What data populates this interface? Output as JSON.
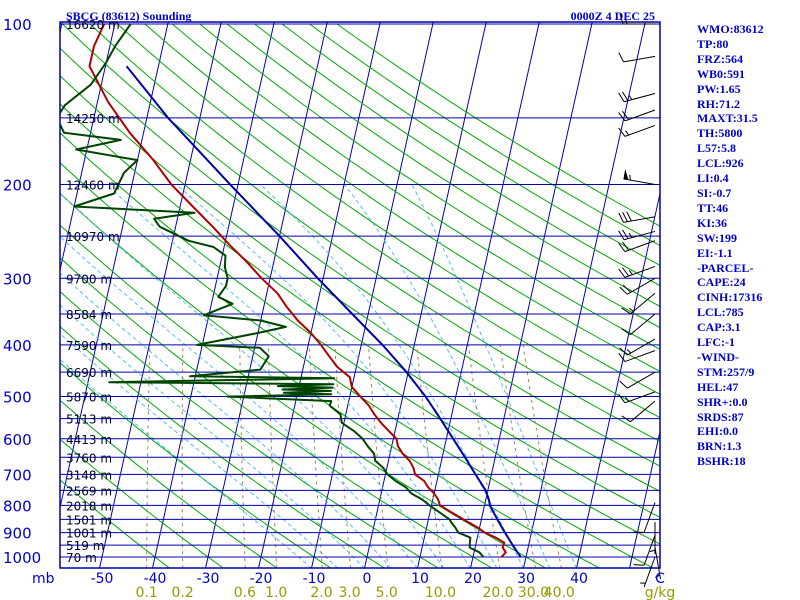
{
  "chart_data": {
    "type": "line",
    "title_left": "SBCG (83612) Sounding",
    "title_right": "0000Z  4 DEC 25",
    "pressure_axis": {
      "label": "mb",
      "ticks": [
        "100",
        "200",
        "300",
        "400",
        "500",
        "600",
        "700",
        "800",
        "900",
        "1000"
      ]
    },
    "height_labels": [
      {
        "text": "16620 m",
        "p": 100
      },
      {
        "text": "14250 m",
        "p": 150
      },
      {
        "text": "12460 m",
        "p": 200
      },
      {
        "text": "10970 m",
        "p": 250
      },
      {
        "text": "9700 m",
        "p": 300
      },
      {
        "text": "8584 m",
        "p": 350
      },
      {
        "text": "7590 m",
        "p": 400
      },
      {
        "text": "6690 m",
        "p": 450
      },
      {
        "text": "5870 m",
        "p": 500
      },
      {
        "text": "5113 m",
        "p": 550
      },
      {
        "text": "4413 m",
        "p": 600
      },
      {
        "text": "3760 m",
        "p": 650
      },
      {
        "text": "3148 m",
        "p": 700
      },
      {
        "text": "2569 m",
        "p": 750
      },
      {
        "text": "2018 m",
        "p": 800
      },
      {
        "text": "1501 m",
        "p": 850
      },
      {
        "text": "1001 m",
        "p": 900
      },
      {
        "text": "519 m",
        "p": 950
      },
      {
        "text": "70 m",
        "p": 1000
      }
    ],
    "temperature_axis": {
      "unit": "C",
      "ticks": [
        "-50",
        "-40",
        "-30",
        "-20",
        "-10",
        "0",
        "10",
        "20",
        "30",
        "40"
      ]
    },
    "mixing_ratio_axis": {
      "unit": "g/kg",
      "ticks": [
        "0.1",
        "0.2",
        "0.6",
        "1.0",
        "2.0",
        "3.0",
        "5.0",
        "10.0",
        "20.0",
        "30.0",
        "40.0"
      ]
    },
    "series": [
      {
        "role": "temperature",
        "color": "#b00000",
        "points": [
          [
            1000,
            25.4
          ],
          [
            980,
            26
          ],
          [
            960,
            25.2
          ],
          [
            940,
            25.3
          ],
          [
            920,
            23.5
          ],
          [
            900,
            21.2
          ],
          [
            880,
            19.6
          ],
          [
            860,
            17.6
          ],
          [
            840,
            15.6
          ],
          [
            820,
            13.6
          ],
          [
            800,
            11.6
          ],
          [
            780,
            11.0
          ],
          [
            760,
            10.0
          ],
          [
            740,
            8.6
          ],
          [
            720,
            7.6
          ],
          [
            700,
            5.6
          ],
          [
            680,
            5.0
          ],
          [
            660,
            4.0
          ],
          [
            640,
            2.4
          ],
          [
            620,
            1.2
          ],
          [
            600,
            0.6
          ],
          [
            580,
            -1.2
          ],
          [
            560,
            -3.0
          ],
          [
            540,
            -4.6
          ],
          [
            520,
            -6.0
          ],
          [
            500,
            -8.0
          ],
          [
            480,
            -10.0
          ],
          [
            460,
            -10.8
          ],
          [
            440,
            -13.6
          ],
          [
            420,
            -15.6
          ],
          [
            400,
            -17.6
          ],
          [
            380,
            -20.0
          ],
          [
            360,
            -23.0
          ],
          [
            340,
            -25.6
          ],
          [
            320,
            -28.0
          ],
          [
            300,
            -31.6
          ],
          [
            280,
            -35.0
          ],
          [
            260,
            -39.0
          ],
          [
            240,
            -43.0
          ],
          [
            220,
            -47.6
          ],
          [
            200,
            -52.6
          ],
          [
            180,
            -57.0
          ],
          [
            160,
            -62.6
          ],
          [
            140,
            -68.0
          ],
          [
            120,
            -73.0
          ],
          [
            110,
            -73.0
          ],
          [
            100,
            -72.0
          ]
        ]
      },
      {
        "role": "dewpoint",
        "color": "#004400",
        "points": [
          [
            1000,
            22.0
          ],
          [
            980,
            21.0
          ],
          [
            960,
            19.0
          ],
          [
            940,
            18.8
          ],
          [
            920,
            18.7
          ],
          [
            900,
            16.2
          ],
          [
            880,
            15.4
          ],
          [
            860,
            14.4
          ],
          [
            850,
            14.0
          ],
          [
            800,
            9.6
          ],
          [
            780,
            8.0
          ],
          [
            760,
            5.7
          ],
          [
            740,
            4.4
          ],
          [
            720,
            2.2
          ],
          [
            700,
            0.4
          ],
          [
            680,
            -0.7
          ],
          [
            660,
            -2.5
          ],
          [
            640,
            -3.0
          ],
          [
            620,
            -4.5
          ],
          [
            600,
            -5.8
          ],
          [
            580,
            -7.8
          ],
          [
            560,
            -10.4
          ],
          [
            540,
            -11.0
          ],
          [
            520,
            -13.4
          ],
          [
            510,
            -13.3
          ],
          [
            500,
            -33.0
          ],
          [
            495,
            -13.6
          ],
          [
            492,
            -22.6
          ],
          [
            488,
            -13.8
          ],
          [
            485,
            -23.0
          ],
          [
            481,
            -13.6
          ],
          [
            478,
            -24.0
          ],
          [
            474,
            -13.6
          ],
          [
            470,
            -56.0
          ],
          [
            462,
            -13.7
          ],
          [
            458,
            -41.0
          ],
          [
            445,
            -28.0
          ],
          [
            420,
            -27.0
          ],
          [
            405,
            -29.0
          ],
          [
            400,
            -41.0
          ],
          [
            380,
            -30.0
          ],
          [
            370,
            -25.0
          ],
          [
            360,
            -30.0
          ],
          [
            352,
            -41.0
          ],
          [
            335,
            -36.0
          ],
          [
            325,
            -39.0
          ],
          [
            310,
            -38.0
          ],
          [
            300,
            -38.0
          ],
          [
            286,
            -39.0
          ],
          [
            272,
            -39.4
          ],
          [
            262,
            -42.0
          ],
          [
            255,
            -47.0
          ],
          [
            240,
            -53.0
          ],
          [
            232,
            -54.4
          ],
          [
            226,
            -47.0
          ],
          [
            220,
            -70.0
          ],
          [
            208,
            -63.0
          ],
          [
            190,
            -62.0
          ],
          [
            180,
            -60.0
          ],
          [
            172,
            -72.0
          ],
          [
            165,
            -64.0
          ],
          [
            160,
            -75.0
          ],
          [
            150,
            -77.0
          ],
          [
            142,
            -76.0
          ],
          [
            130,
            -72.0
          ],
          [
            118,
            -70.0
          ],
          [
            110,
            -69.0
          ],
          [
            100,
            -67.0
          ]
        ]
      },
      {
        "role": "parcel",
        "color": "#0000aa",
        "points": [
          [
            1000,
            29.0
          ],
          [
            950,
            27.0
          ],
          [
            900,
            25.0
          ],
          [
            850,
            23.0
          ],
          [
            800,
            21.0
          ],
          [
            785,
            20.7
          ],
          [
            750,
            19.6
          ],
          [
            700,
            17.0
          ],
          [
            650,
            14.3
          ],
          [
            600,
            11.3
          ],
          [
            550,
            8.0
          ],
          [
            500,
            4.3
          ],
          [
            450,
            -0.3
          ],
          [
            400,
            -6.0
          ],
          [
            350,
            -13.0
          ],
          [
            300,
            -21.0
          ],
          [
            250,
            -30.0
          ],
          [
            200,
            -41.5
          ],
          [
            150,
            -56.0
          ],
          [
            120,
            -66.0
          ]
        ]
      }
    ],
    "wind_barbs": [
      {
        "p": 100,
        "dir": 270,
        "kt": 15
      },
      {
        "p": 115,
        "dir": 260,
        "kt": 10
      },
      {
        "p": 135,
        "dir": 255,
        "kt": 25
      },
      {
        "p": 145,
        "dir": 250,
        "kt": 20
      },
      {
        "p": 155,
        "dir": 250,
        "kt": 15
      },
      {
        "p": 200,
        "dir": 280,
        "kt": 55
      },
      {
        "p": 230,
        "dir": 260,
        "kt": 30
      },
      {
        "p": 245,
        "dir": 255,
        "kt": 25
      },
      {
        "p": 255,
        "dir": 250,
        "kt": 20
      },
      {
        "p": 285,
        "dir": 250,
        "kt": 25
      },
      {
        "p": 300,
        "dir": 240,
        "kt": 20
      },
      {
        "p": 320,
        "dir": 230,
        "kt": 15
      },
      {
        "p": 350,
        "dir": 230,
        "kt": 10
      },
      {
        "p": 390,
        "dir": 240,
        "kt": 15
      },
      {
        "p": 410,
        "dir": 250,
        "kt": 10
      },
      {
        "p": 450,
        "dir": 240,
        "kt": 10
      },
      {
        "p": 490,
        "dir": 250,
        "kt": 15
      },
      {
        "p": 510,
        "dir": 230,
        "kt": 10
      },
      {
        "p": 790,
        "dir": 200,
        "kt": 10
      },
      {
        "p": 860,
        "dir": 180,
        "kt": 5
      },
      {
        "p": 910,
        "dir": 200,
        "kt": 10
      },
      {
        "p": 960,
        "dir": 170,
        "kt": 5
      },
      {
        "p": 1000,
        "dir": 200,
        "kt": 5
      }
    ]
  },
  "indices": [
    "WMO:83612",
    "TP:80",
    "FRZ:564",
    "WB0:591",
    "PW:1.65",
    "RH:71.2",
    "MAXT:31.5",
    "TH:5800",
    "L57:5.8",
    "LCL:926",
    "LI:0.4",
    "SI:-0.7",
    "TT:46",
    "KI:36",
    "SW:199",
    "EI:-1.1",
    "-PARCEL-",
    "CAPE:24",
    "CINH:17316",
    "LCL:785",
    "CAP:3.1",
    "LFC:-1",
    "-WIND-",
    "STM:257/9",
    "HEL:47",
    "SHR+:0.0",
    "SRDS:87",
    "EHI:0.0",
    "BRN:1.3",
    "BSHR:18"
  ],
  "colors": {
    "isobar": "#0000aa",
    "isotherm": "#0000aa",
    "dry_adiabat": "#00aa00",
    "moist_adiabat": "#55bbff",
    "mixing_ratio": "#998844",
    "temperature": "#b00000",
    "dewpoint": "#004400",
    "parcel": "#0000aa",
    "text": "#0000cc",
    "mixing_label": "#999900",
    "barb": "#000000"
  }
}
